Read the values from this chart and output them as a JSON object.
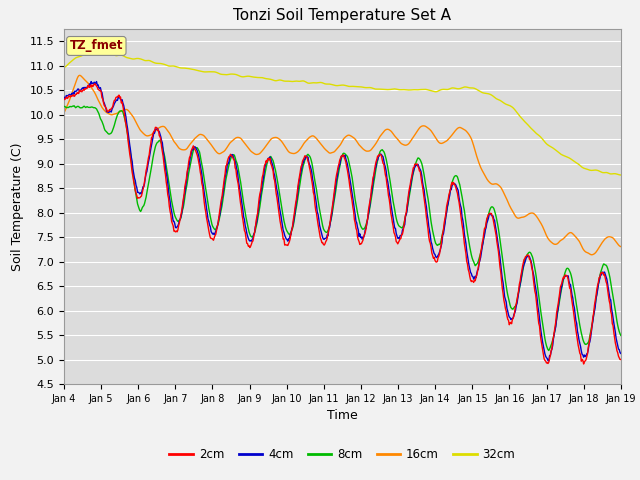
{
  "title": "Tonzi Soil Temperature Set A",
  "xlabel": "Time",
  "ylabel": "Soil Temperature (C)",
  "ylim": [
    4.5,
    11.75
  ],
  "annotation_text": "TZ_fmet",
  "annotation_color": "#8B0000",
  "annotation_bg": "#FFFF99",
  "legend_entries": [
    "2cm",
    "4cm",
    "8cm",
    "16cm",
    "32cm"
  ],
  "colors": {
    "2cm": "#FF0000",
    "4cm": "#0000CC",
    "8cm": "#00BB00",
    "16cm": "#FF8800",
    "32cm": "#DDDD00"
  },
  "xtick_labels": [
    "Jan 4",
    "Jan 5",
    "Jan 6",
    "Jan 7",
    "Jan 8",
    "Jan 9",
    "Jan 10",
    "Jan 11",
    "Jan 12",
    "Jan 13",
    "Jan 14",
    "Jan 15",
    "Jan 16",
    "Jan 17",
    "Jan 18",
    "Jan 19"
  ],
  "n_points": 720,
  "background_color": "#DCDCDC",
  "plot_bg": "#DCDCDC",
  "grid_color": "#FFFFFF",
  "linewidth": 1.0
}
